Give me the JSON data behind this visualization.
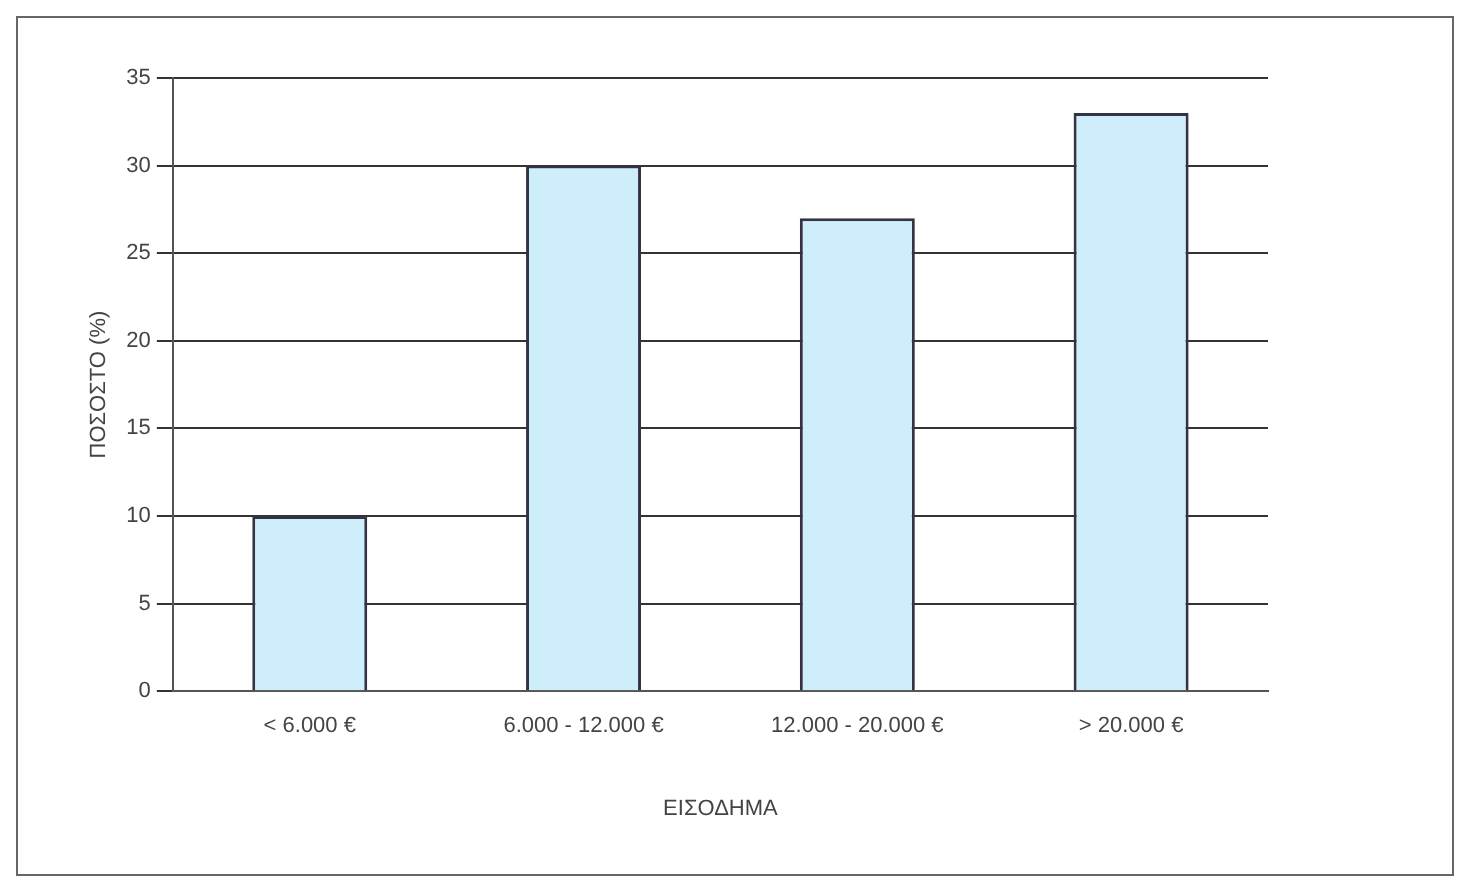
{
  "chart_data": {
    "type": "bar",
    "xlabel": "ΕΙΣΟΔΗΜΑ",
    "ylabel": "ΠΟΣΟΣΤΟ (%)",
    "categories": [
      "< 6.000 €",
      "6.000 - 12.000 €",
      "12.000 - 20.000 €",
      "> 20.000 €"
    ],
    "values": [
      10,
      30,
      27,
      33
    ],
    "color": "#cdeefa",
    "ylim": [
      0,
      35
    ],
    "yticks": [
      0,
      5,
      10,
      15,
      20,
      25,
      30,
      35
    ],
    "grid": "y",
    "legend": false
  }
}
